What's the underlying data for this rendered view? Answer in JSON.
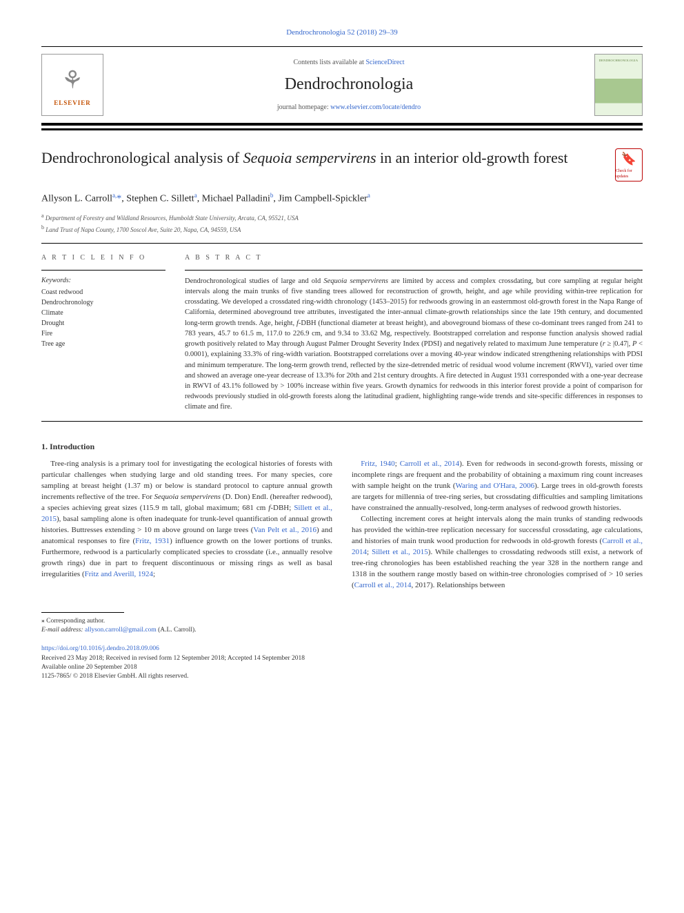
{
  "journal_ref": "Dendrochronologia 52 (2018) 29–39",
  "header": {
    "contents_prefix": "Contents lists available at ",
    "contents_link": "ScienceDirect",
    "journal_name": "Dendrochronologia",
    "homepage_prefix": "journal homepage: ",
    "homepage_link": "www.elsevier.com/locate/dendro",
    "elsevier_text": "ELSEVIER",
    "check_label": "Check for updates"
  },
  "article": {
    "title_pre": "Dendrochronological analysis of ",
    "title_species": "Sequoia sempervirens",
    "title_post": " in an interior old-growth forest",
    "authors_html": "Allyson L. Carroll<sup>a,</sup><a>*</a>, Stephen C. Sillett<sup>a</sup>, Michael Palladini<sup>b</sup>, Jim Campbell-Spickler<sup>a</sup>",
    "affiliations": [
      {
        "sup": "a",
        "text": "Department of Forestry and Wildland Resources, Humboldt State University, Arcata, CA, 95521, USA"
      },
      {
        "sup": "b",
        "text": "Land Trust of Napa County, 1700 Soscol Ave, Suite 20, Napa, CA, 94559, USA"
      }
    ]
  },
  "info": {
    "heading": "A R T I C L E  I N F O",
    "kw_label": "Keywords:",
    "keywords": [
      "Coast redwood",
      "Dendrochronology",
      "Climate",
      "Drought",
      "Fire",
      "Tree age"
    ]
  },
  "abstract": {
    "heading": "A B S T R A C T",
    "text": "Dendrochronological studies of large and old Sequoia sempervirens are limited by access and complex crossdating, but core sampling at regular height intervals along the main trunks of five standing trees allowed for reconstruction of growth, height, and age while providing within-tree replication for crossdating. We developed a crossdated ring-width chronology (1453–2015) for redwoods growing in an easternmost old-growth forest in the Napa Range of California, determined aboveground tree attributes, investigated the inter-annual climate-growth relationships since the late 19th century, and documented long-term growth trends. Age, height, f-DBH (functional diameter at breast height), and aboveground biomass of these co-dominant trees ranged from 241 to 783 years, 45.7 to 61.5 m, 117.0 to 226.9 cm, and 9.34 to 33.62 Mg, respectively. Bootstrapped correlation and response function analysis showed radial growth positively related to May through August Palmer Drought Severity Index (PDSI) and negatively related to maximum June temperature (r ≥ |0.47|, P < 0.0001), explaining 33.3% of ring-width variation. Bootstrapped correlations over a moving 40-year window indicated strengthening relationships with PDSI and minimum temperature. The long-term growth trend, reflected by the size-detrended metric of residual wood volume increment (RWVI), varied over time and showed an average one-year decrease of 13.3% for 20th and 21st century droughts. A fire detected in August 1931 corresponded with a one-year decrease in RWVI of 43.1% followed by > 100% increase within five years. Growth dynamics for redwoods in this interior forest provide a point of comparison for redwoods previously studied in old-growth forests along the latitudinal gradient, highlighting range-wide trends and site-specific differences in responses to climate and fire."
  },
  "intro": {
    "heading": "1. Introduction",
    "p1": "Tree-ring analysis is a primary tool for investigating the ecological histories of forests with particular challenges when studying large and old standing trees. For many species, core sampling at breast height (1.37 m) or below is standard protocol to capture annual growth increments reflective of the tree. For Sequoia sempervirens (D. Don) Endl. (hereafter redwood), a species achieving great sizes (115.9 m tall, global maximum; 681 cm f-DBH; Sillett et al., 2015), basal sampling alone is often inadequate for trunk-level quantification of annual growth histories. Buttresses extending > 10 m above ground on large trees (Van Pelt et al., 2016) and anatomical responses to fire (Fritz, 1931) influence growth on the lower portions of trunks. Furthermore, redwood is a particularly complicated species to crossdate (i.e., annually resolve growth rings) due in part to frequent discontinuous or missing rings as well as basal irregularities (Fritz and Averill, 1924;",
    "p2": "Fritz, 1940; Carroll et al., 2014). Even for redwoods in second-growth forests, missing or incomplete rings are frequent and the probability of obtaining a maximum ring count increases with sample height on the trunk (Waring and O'Hara, 2006). Large trees in old-growth forests are targets for millennia of tree-ring series, but crossdating difficulties and sampling limitations have constrained the annually-resolved, long-term analyses of redwood growth histories.",
    "p3": "Collecting increment cores at height intervals along the main trunks of standing redwoods has provided the within-tree replication necessary for successful crossdating, age calculations, and histories of main trunk wood production for redwoods in old-growth forests (Carroll et al., 2014; Sillett et al., 2015). While challenges to crossdating redwoods still exist, a network of tree-ring chronologies has been established reaching the year 328 in the northern range and 1318 in the southern range mostly based on within-tree chronologies comprised of > 10 series (Carroll et al., 2014, 2017). Relationships between"
  },
  "footnote": {
    "corr": "⁎ Corresponding author.",
    "email_label": "E-mail address: ",
    "email": "allyson.carroll@gmail.com",
    "email_person": " (A.L. Carroll)."
  },
  "doi": {
    "link": "https://doi.org/10.1016/j.dendro.2018.09.006",
    "received": "Received 23 May 2018; Received in revised form 12 September 2018; Accepted 14 September 2018",
    "online": "Available online 20 September 2018",
    "copyright": "1125-7865/ © 2018 Elsevier GmbH. All rights reserved."
  },
  "links": {
    "sillett2015": "Sillett et al., 2015",
    "vanpelt2016": "Van Pelt et al., 2016",
    "fritz1931": "Fritz, 1931",
    "fritzaverill1924": "Fritz and Averill, 1924",
    "fritz1940": "Fritz, 1940",
    "carroll2014": "Carroll et al., 2014",
    "waring2006": "Waring and O'Hara, 2006",
    "carroll2014b": "Carroll et al., 2014",
    "sillett2015b": "Sillett et al., 2015",
    "carroll20142017": "Carroll et al., 2014, 2017"
  },
  "colors": {
    "link": "#3366cc",
    "text": "#333333",
    "rule": "#000000"
  }
}
